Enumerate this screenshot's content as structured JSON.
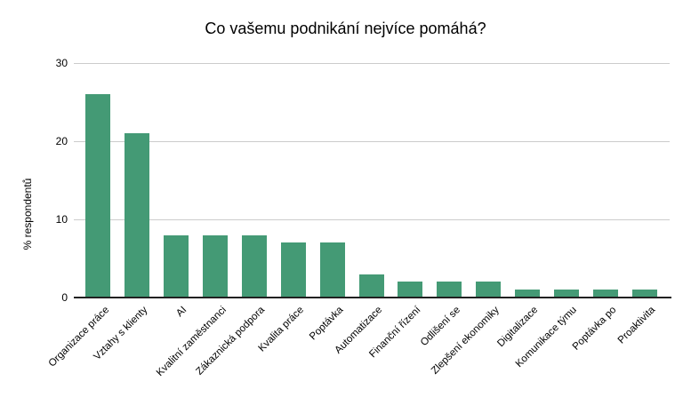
{
  "chart": {
    "title": "Co vašemu podnikání nejvíce pomáhá?",
    "ylabel": "% respondentů"
  },
  "chart_data": {
    "type": "bar",
    "title": "Co vašemu podnikání nejvíce pomáhá?",
    "xlabel": "",
    "ylabel": "% respondentů",
    "categories": [
      "Organizace práce",
      "Vztahy s klienty",
      "AI",
      "Kvalitní zaměstnanci",
      "Zákaznická podpora",
      "Kvalita práce",
      "Poptávka",
      "Automatizace",
      "Finanční řízení",
      "Odlišení se",
      "Zlepšení ekonomiky",
      "Digitalizace",
      "Komunikace týmu",
      "Poptávka po",
      "Proaktivita"
    ],
    "values": [
      26,
      21,
      8,
      8,
      8,
      7,
      7,
      3,
      2,
      2,
      2,
      1,
      1,
      1,
      1
    ],
    "ylim": [
      0,
      30
    ],
    "yticks": [
      0,
      10,
      20,
      30
    ],
    "grid": true,
    "legend": "none",
    "colors": {
      "bar": "#449a75",
      "gridline": "#cccccc",
      "axis": "#212121",
      "text": "#000000",
      "background": "#ffffff"
    }
  }
}
